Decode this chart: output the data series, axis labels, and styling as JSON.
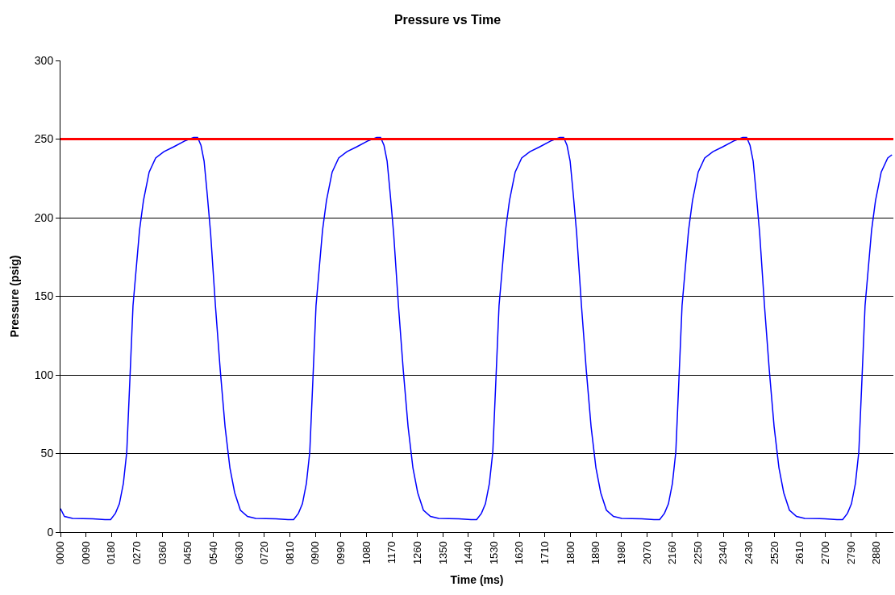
{
  "chart_data": {
    "type": "line",
    "title": "Pressure vs Time",
    "xlabel": "Time (ms)",
    "ylabel": "Pressure (psig)",
    "x": [
      0,
      14,
      43,
      114,
      157,
      177,
      194,
      208,
      222,
      234,
      245,
      256,
      268,
      279,
      293,
      313,
      336,
      365,
      399,
      441,
      470,
      484,
      496,
      507,
      518,
      530,
      547,
      564,
      581,
      598,
      615,
      635,
      660,
      689,
      760,
      803,
      823,
      840,
      854,
      868,
      880,
      891,
      902,
      914,
      925,
      939,
      959,
      982,
      1011,
      1045,
      1087,
      1116,
      1130,
      1142,
      1153,
      1164,
      1176,
      1193,
      1210,
      1227,
      1244,
      1261,
      1281,
      1306,
      1335,
      1406,
      1449,
      1469,
      1486,
      1500,
      1514,
      1526,
      1537,
      1548,
      1560,
      1571,
      1585,
      1605,
      1628,
      1657,
      1691,
      1733,
      1762,
      1776,
      1788,
      1799,
      1810,
      1822,
      1839,
      1856,
      1873,
      1890,
      1907,
      1927,
      1952,
      1981,
      2052,
      2095,
      2115,
      2132,
      2146,
      2160,
      2172,
      2183,
      2194,
      2206,
      2217,
      2231,
      2251,
      2274,
      2303,
      2337,
      2379,
      2408,
      2422,
      2434,
      2445,
      2456,
      2468,
      2485,
      2502,
      2519,
      2536,
      2553,
      2573,
      2598,
      2627,
      2698,
      2741,
      2761,
      2778,
      2792,
      2806,
      2818,
      2829,
      2840,
      2852,
      2863,
      2877,
      2897,
      2920,
      2935
    ],
    "series": [
      {
        "color": "#0000ff",
        "values": [
          15,
          10,
          8.7,
          8.5,
          8,
          8,
          12,
          18,
          31,
          51,
          97,
          144,
          169,
          192,
          211,
          229,
          238,
          242,
          245,
          249,
          251,
          251,
          246,
          236,
          215,
          190,
          144,
          103,
          67,
          41,
          25,
          14,
          10,
          8.7,
          8.5,
          8,
          8,
          12,
          18,
          31,
          51,
          97,
          144,
          169,
          192,
          211,
          229,
          238,
          242,
          245,
          249,
          251,
          251,
          246,
          236,
          215,
          190,
          144,
          103,
          67,
          41,
          25,
          14,
          10,
          8.7,
          8.5,
          8,
          8,
          12,
          18,
          31,
          51,
          97,
          144,
          169,
          192,
          211,
          229,
          238,
          242,
          245,
          249,
          251,
          251,
          246,
          236,
          215,
          190,
          144,
          103,
          67,
          41,
          25,
          14,
          10,
          8.7,
          8.5,
          8,
          8,
          12,
          18,
          31,
          51,
          97,
          144,
          169,
          192,
          211,
          229,
          238,
          242,
          245,
          249,
          251,
          251,
          246,
          236,
          215,
          190,
          144,
          103,
          67,
          41,
          25,
          14,
          10,
          8.7,
          8.5,
          8,
          8,
          12,
          18,
          31,
          51,
          97,
          144,
          169,
          192,
          211,
          229,
          238,
          240
        ]
      }
    ],
    "ref_lines": [
      {
        "axis": "y",
        "value": 250,
        "color": "#ff0000"
      }
    ],
    "xlim": [
      0,
      2940
    ],
    "xticks": [
      {
        "value": 0,
        "label": "0000"
      },
      {
        "value": 90,
        "label": "0090"
      },
      {
        "value": 180,
        "label": "0180"
      },
      {
        "value": 270,
        "label": "0270"
      },
      {
        "value": 360,
        "label": "0360"
      },
      {
        "value": 450,
        "label": "0450"
      },
      {
        "value": 540,
        "label": "0540"
      },
      {
        "value": 630,
        "label": "0630"
      },
      {
        "value": 720,
        "label": "0720"
      },
      {
        "value": 810,
        "label": "0810"
      },
      {
        "value": 900,
        "label": "0900"
      },
      {
        "value": 990,
        "label": "0990"
      },
      1080,
      1170,
      1260,
      1350,
      1440,
      1530,
      1620,
      1710,
      1800,
      1890,
      1980,
      2070,
      2160,
      2250,
      2340,
      2430,
      2520,
      2610,
      2700,
      2790,
      2880
    ],
    "ylim": [
      0,
      300
    ],
    "yticks": [
      0,
      50,
      100,
      150,
      200,
      250,
      300
    ],
    "grid": "y",
    "marker": "none",
    "line_style": "solid"
  }
}
